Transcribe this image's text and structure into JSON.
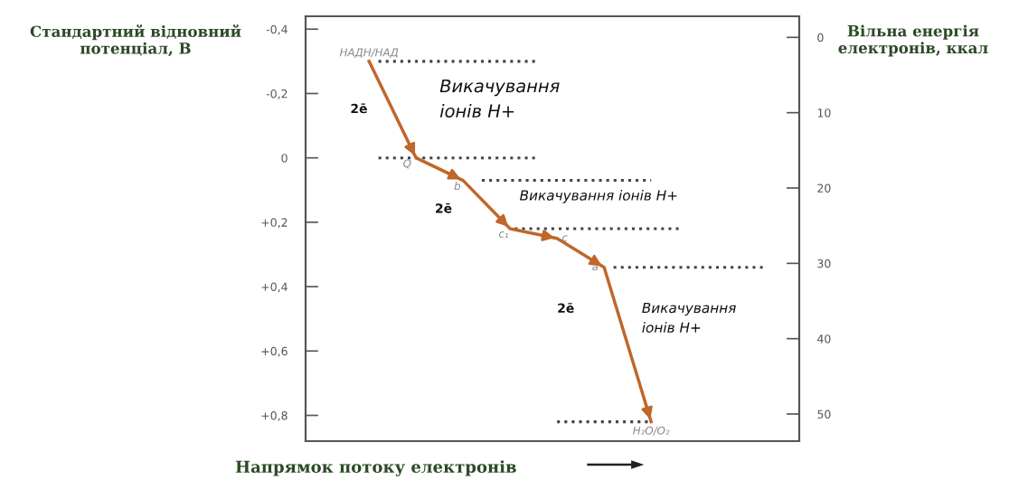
{
  "chart_data": {
    "type": "line",
    "xlabel": "Напрямок потоку електронів",
    "ylabel": "Стандартний відновний потенціал, В",
    "y2label": "Вільна енергія електронів, ккал",
    "categories": [
      null,
      null,
      null,
      null,
      null,
      null,
      null
    ],
    "series": [
      {
        "color": "#c0672a",
        "values": [
          -0.3,
          0.0,
          0.07,
          0.22,
          0.25,
          0.34,
          0.82
        ]
      }
    ],
    "ylim": [
      0.88,
      -0.44
    ],
    "yticks": [
      {
        "value": -0.4,
        "label": "-0,4"
      },
      {
        "value": -0.2,
        "label": "-0,2"
      },
      0,
      {
        "value": 0.2,
        "label": "+0,2"
      },
      {
        "value": 0.4,
        "label": "+0,4"
      },
      {
        "value": 0.6,
        "label": "+0,6"
      },
      {
        "value": 0.8,
        "label": "+0,8"
      }
    ],
    "y2lim": [
      53.6,
      -2.8
    ],
    "y2ticks": [
      0,
      10,
      20,
      30,
      40,
      50
    ],
    "tick_labels": "y",
    "marker": "none",
    "line_style": "solid",
    "grid": false,
    "ref_lines": [
      {
        "axis": "y",
        "value": -0.3,
        "color": "#444444",
        "line_style": "dotted"
      },
      {
        "axis": "y",
        "value": 0.0,
        "color": "#444444",
        "line_style": "dotted"
      },
      {
        "axis": "y",
        "value": 0.07,
        "color": "#444444",
        "line_style": "dotted"
      },
      {
        "axis": "y",
        "value": 0.22,
        "color": "#444444",
        "line_style": "dotted"
      },
      {
        "axis": "y",
        "value": 0.34,
        "color": "#444444",
        "line_style": "dotted"
      },
      {
        "axis": "y",
        "value": 0.82,
        "color": "#444444",
        "line_style": "dotted"
      }
    ],
    "annotations": [
      {
        "text": "НАДН/НАД",
        "y": -0.3
      },
      {
        "text": "Q",
        "y": 0.0
      },
      {
        "text": "b",
        "y": 0.07
      },
      {
        "text": "c₁",
        "y": 0.22
      },
      {
        "text": "c",
        "y": 0.25
      },
      {
        "text": "a",
        "y": 0.34
      },
      {
        "text": "H₂O/O₂",
        "y": 0.82
      },
      "Викачування\nіонів H+",
      "2ē",
      "Викачування іонів H+",
      "2ē",
      "Викачування\nіонів H+",
      "2ē"
    ]
  }
}
